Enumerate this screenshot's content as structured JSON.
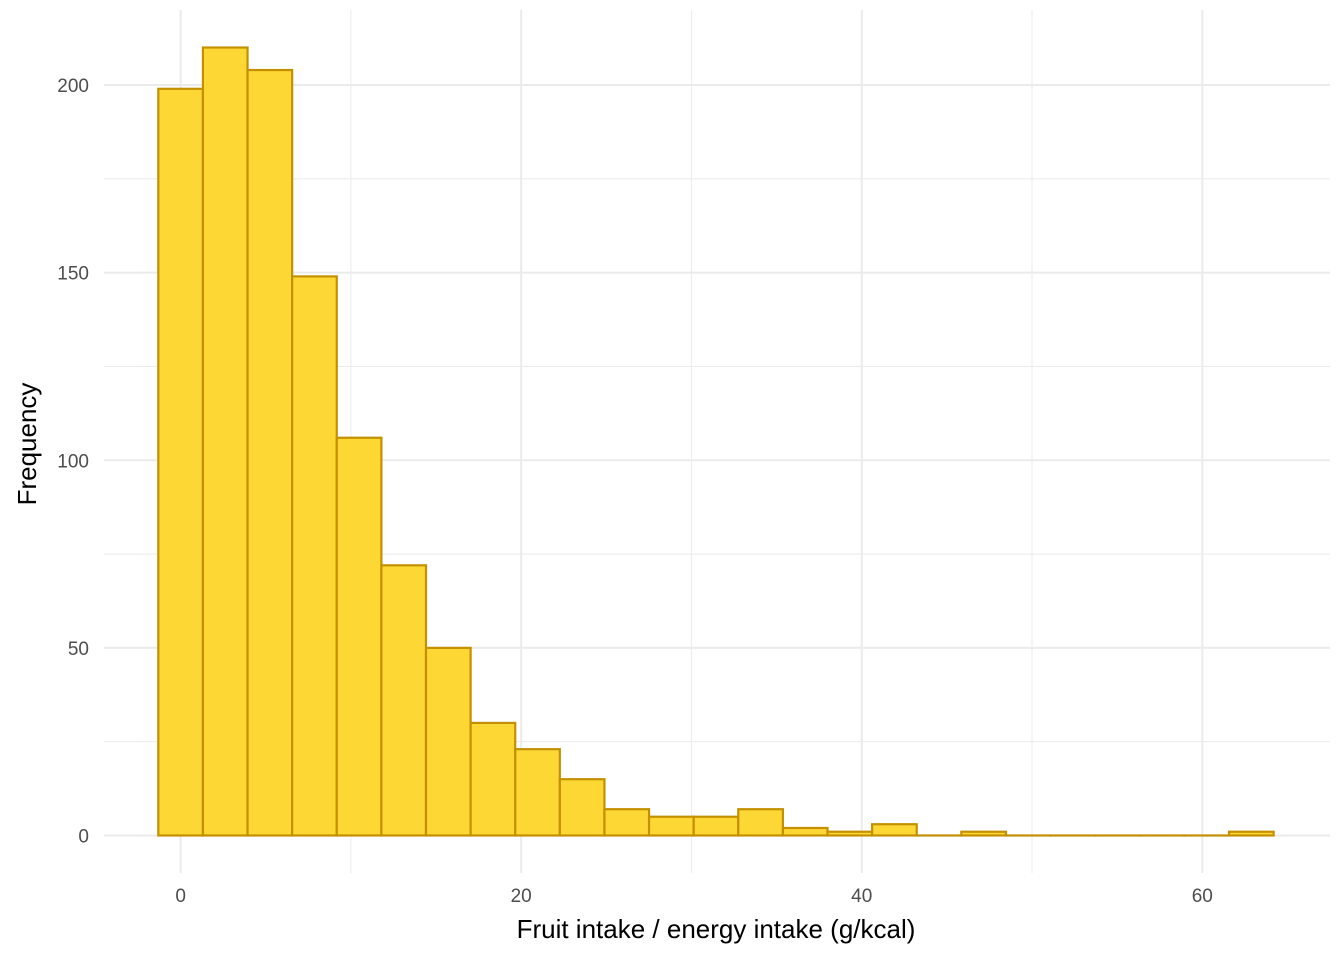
{
  "chart_data": {
    "type": "bar",
    "subtype": "histogram",
    "xlabel": "Fruit intake / energy intake (g/kcal)",
    "ylabel": "Frequency",
    "xlim": [
      -4.5,
      67.5
    ],
    "ylim": [
      -10,
      220
    ],
    "x_ticks": [
      0,
      20,
      40,
      60
    ],
    "y_ticks": [
      0,
      50,
      100,
      150,
      200
    ],
    "grid": true,
    "legend": "none",
    "bin_width": 2.62,
    "bin_start": -1.31,
    "values": [
      199,
      210,
      204,
      149,
      106,
      72,
      50,
      30,
      23,
      15,
      7,
      5,
      5,
      7,
      2,
      1,
      3,
      0,
      1,
      0,
      0,
      0,
      0,
      0,
      1
    ],
    "colors": {
      "fill": "#FDD835",
      "outline": "#C49000",
      "grid": "#EBEBEB"
    }
  }
}
